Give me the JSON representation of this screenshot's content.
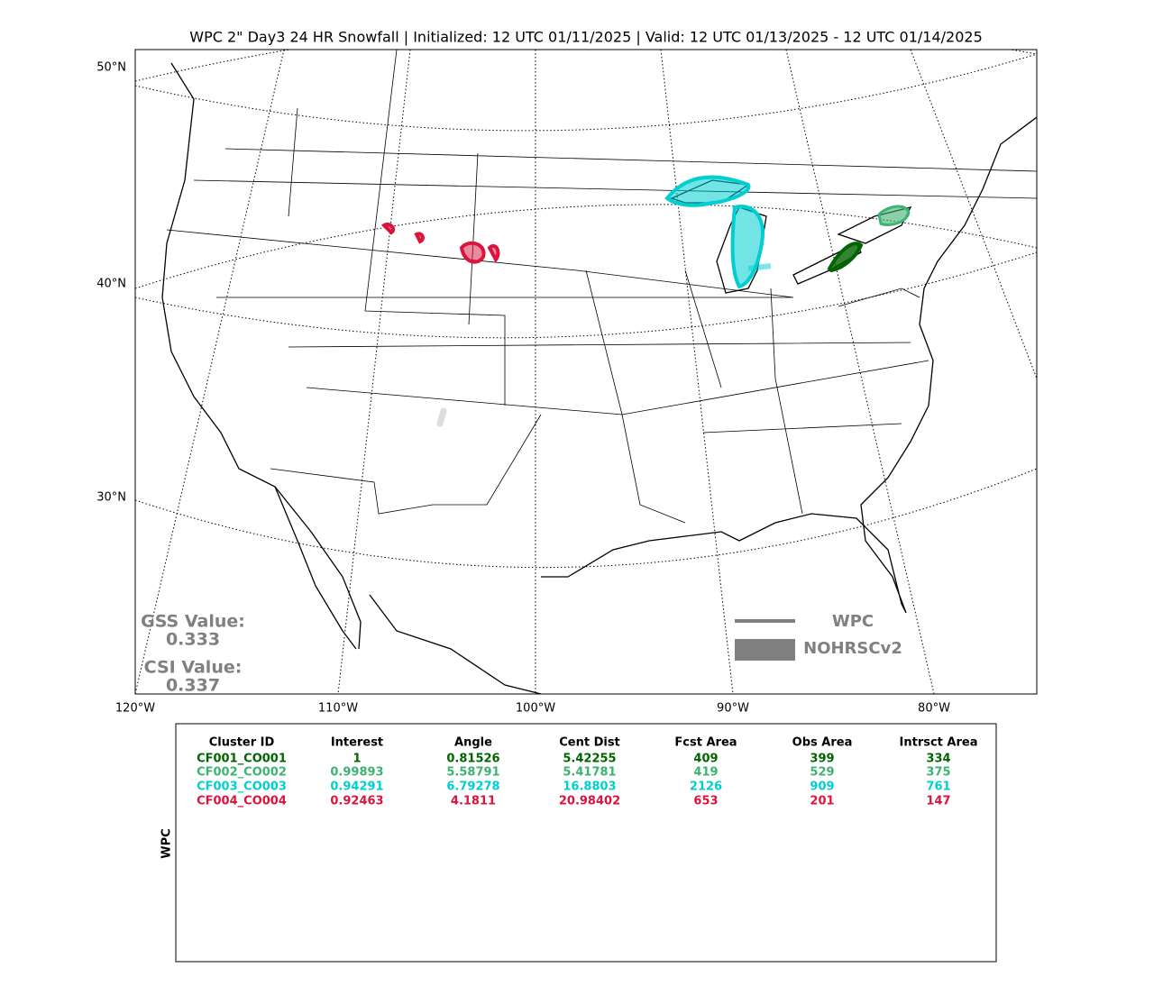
{
  "title": "WPC 2\" Day3 24 HR Snowfall | Initialized: 12 UTC 01/11/2025 | Valid: 12 UTC 01/13/2025 - 12 UTC 01/14/2025",
  "map": {
    "lat_labels": [
      "50°N",
      "40°N",
      "30°N"
    ],
    "lon_labels": [
      "120°W",
      "110°W",
      "100°W",
      "90°W",
      "80°W"
    ]
  },
  "stats": {
    "gss_label": "GSS Value:",
    "gss_value": "0.333",
    "csi_label": "CSI Value:",
    "csi_value": "0.337"
  },
  "legend": {
    "items": [
      "WPC",
      "NOHRSCv2"
    ],
    "color": "#808080"
  },
  "table": {
    "side_label": "WPC",
    "headers": [
      "Cluster ID",
      "Interest",
      "Angle",
      "Cent Dist",
      "Fcst Area",
      "Obs Area",
      "Intrsct Area"
    ],
    "rows": [
      {
        "color": "#006400",
        "cells": [
          "CF001_CO001",
          1,
          0.81526,
          5.42255,
          409,
          399,
          334
        ]
      },
      {
        "color": "#3cb371",
        "cells": [
          "CF002_CO002",
          0.99893,
          5.58791,
          5.41781,
          419,
          529,
          375
        ]
      },
      {
        "color": "#00ced1",
        "cells": [
          "CF003_CO003",
          0.94291,
          6.79278,
          16.8803,
          2126,
          909,
          761
        ]
      },
      {
        "color": "#dc143c",
        "cells": [
          "CF004_CO004",
          0.92463,
          4.1811,
          20.98402,
          653,
          201,
          147
        ]
      }
    ]
  }
}
